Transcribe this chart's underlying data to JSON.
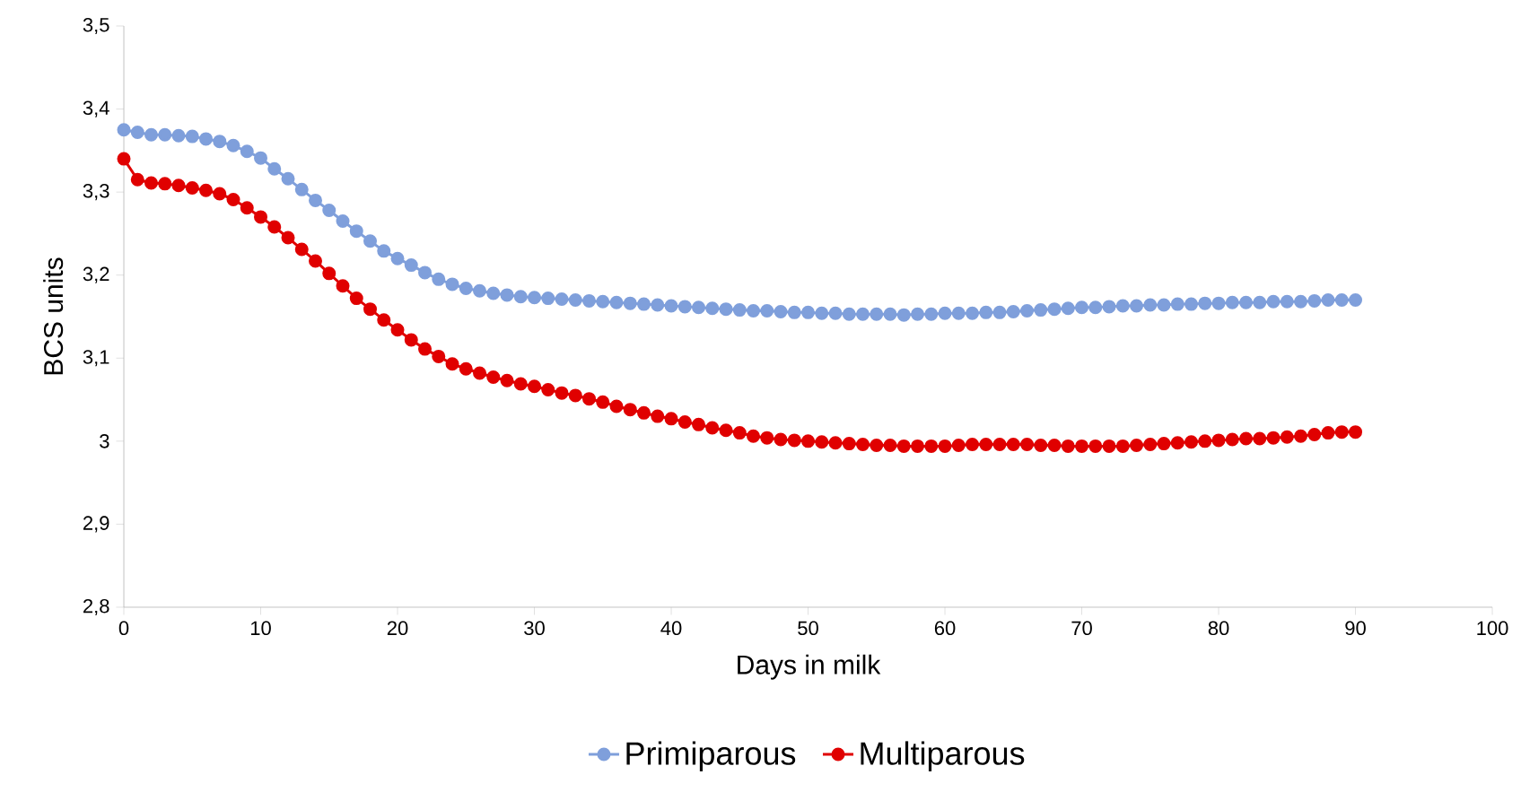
{
  "chart_data": {
    "type": "line",
    "xlabel": "Days in milk",
    "ylabel": "BCS units",
    "x": [
      0,
      1,
      2,
      3,
      4,
      5,
      6,
      7,
      8,
      9,
      10,
      11,
      12,
      13,
      14,
      15,
      16,
      17,
      18,
      19,
      20,
      21,
      22,
      23,
      24,
      25,
      26,
      27,
      28,
      29,
      30,
      31,
      32,
      33,
      34,
      35,
      36,
      37,
      38,
      39,
      40,
      41,
      42,
      43,
      44,
      45,
      46,
      47,
      48,
      49,
      50,
      51,
      52,
      53,
      54,
      55,
      56,
      57,
      58,
      59,
      60,
      61,
      62,
      63,
      64,
      65,
      66,
      67,
      68,
      69,
      70,
      71,
      72,
      73,
      74,
      75,
      76,
      77,
      78,
      79,
      80,
      81,
      82,
      83,
      84,
      85,
      86,
      87,
      88,
      89,
      90
    ],
    "series": [
      {
        "name": "Primiparous",
        "color": "#7f9fdb",
        "values": [
          3.375,
          3.372,
          3.369,
          3.369,
          3.368,
          3.367,
          3.364,
          3.361,
          3.356,
          3.349,
          3.341,
          3.328,
          3.316,
          3.303,
          3.29,
          3.278,
          3.265,
          3.253,
          3.241,
          3.229,
          3.22,
          3.212,
          3.203,
          3.195,
          3.189,
          3.184,
          3.181,
          3.178,
          3.176,
          3.174,
          3.173,
          3.172,
          3.171,
          3.17,
          3.169,
          3.168,
          3.167,
          3.166,
          3.165,
          3.164,
          3.163,
          3.162,
          3.161,
          3.16,
          3.159,
          3.158,
          3.157,
          3.157,
          3.156,
          3.155,
          3.155,
          3.154,
          3.154,
          3.153,
          3.153,
          3.153,
          3.153,
          3.152,
          3.153,
          3.153,
          3.154,
          3.154,
          3.154,
          3.155,
          3.155,
          3.156,
          3.157,
          3.158,
          3.159,
          3.16,
          3.161,
          3.161,
          3.162,
          3.163,
          3.163,
          3.164,
          3.164,
          3.165,
          3.165,
          3.166,
          3.166,
          3.167,
          3.167,
          3.167,
          3.168,
          3.168,
          3.168,
          3.169,
          3.17,
          3.17,
          3.17
        ]
      },
      {
        "name": "Multiparous",
        "color": "#e00000",
        "values": [
          3.34,
          3.315,
          3.311,
          3.31,
          3.308,
          3.305,
          3.302,
          3.298,
          3.291,
          3.281,
          3.27,
          3.258,
          3.245,
          3.231,
          3.217,
          3.202,
          3.187,
          3.172,
          3.159,
          3.146,
          3.134,
          3.122,
          3.111,
          3.102,
          3.093,
          3.087,
          3.082,
          3.077,
          3.073,
          3.069,
          3.066,
          3.062,
          3.058,
          3.055,
          3.051,
          3.047,
          3.042,
          3.038,
          3.034,
          3.03,
          3.027,
          3.023,
          3.02,
          3.016,
          3.013,
          3.01,
          3.006,
          3.004,
          3.002,
          3.001,
          3.0,
          2.999,
          2.998,
          2.997,
          2.996,
          2.995,
          2.995,
          2.994,
          2.994,
          2.994,
          2.994,
          2.995,
          2.996,
          2.996,
          2.996,
          2.996,
          2.996,
          2.995,
          2.995,
          2.994,
          2.994,
          2.994,
          2.994,
          2.994,
          2.995,
          2.996,
          2.997,
          2.998,
          2.999,
          3.0,
          3.001,
          3.002,
          3.003,
          3.003,
          3.004,
          3.005,
          3.006,
          3.008,
          3.01,
          3.011,
          3.011
        ]
      }
    ],
    "xlim": [
      0,
      100
    ],
    "xticks": [
      0,
      10,
      20,
      30,
      40,
      50,
      60,
      70,
      80,
      90,
      100
    ],
    "ylim": [
      2.8,
      3.5
    ],
    "yticks": [
      {
        "value": 2.8,
        "label": "2,8"
      },
      {
        "value": 2.9,
        "label": "2,9"
      },
      {
        "value": 3,
        "label": "3"
      },
      {
        "value": 3.1,
        "label": "3,1"
      },
      {
        "value": 3.2,
        "label": "3,2"
      },
      {
        "value": 3.3,
        "label": "3,3"
      },
      {
        "value": 3.4,
        "label": "3,4"
      },
      {
        "value": 3.5,
        "label": "3,5"
      }
    ],
    "grid": false,
    "legend": "bottom",
    "marker": "circle",
    "line_style": "solid"
  }
}
